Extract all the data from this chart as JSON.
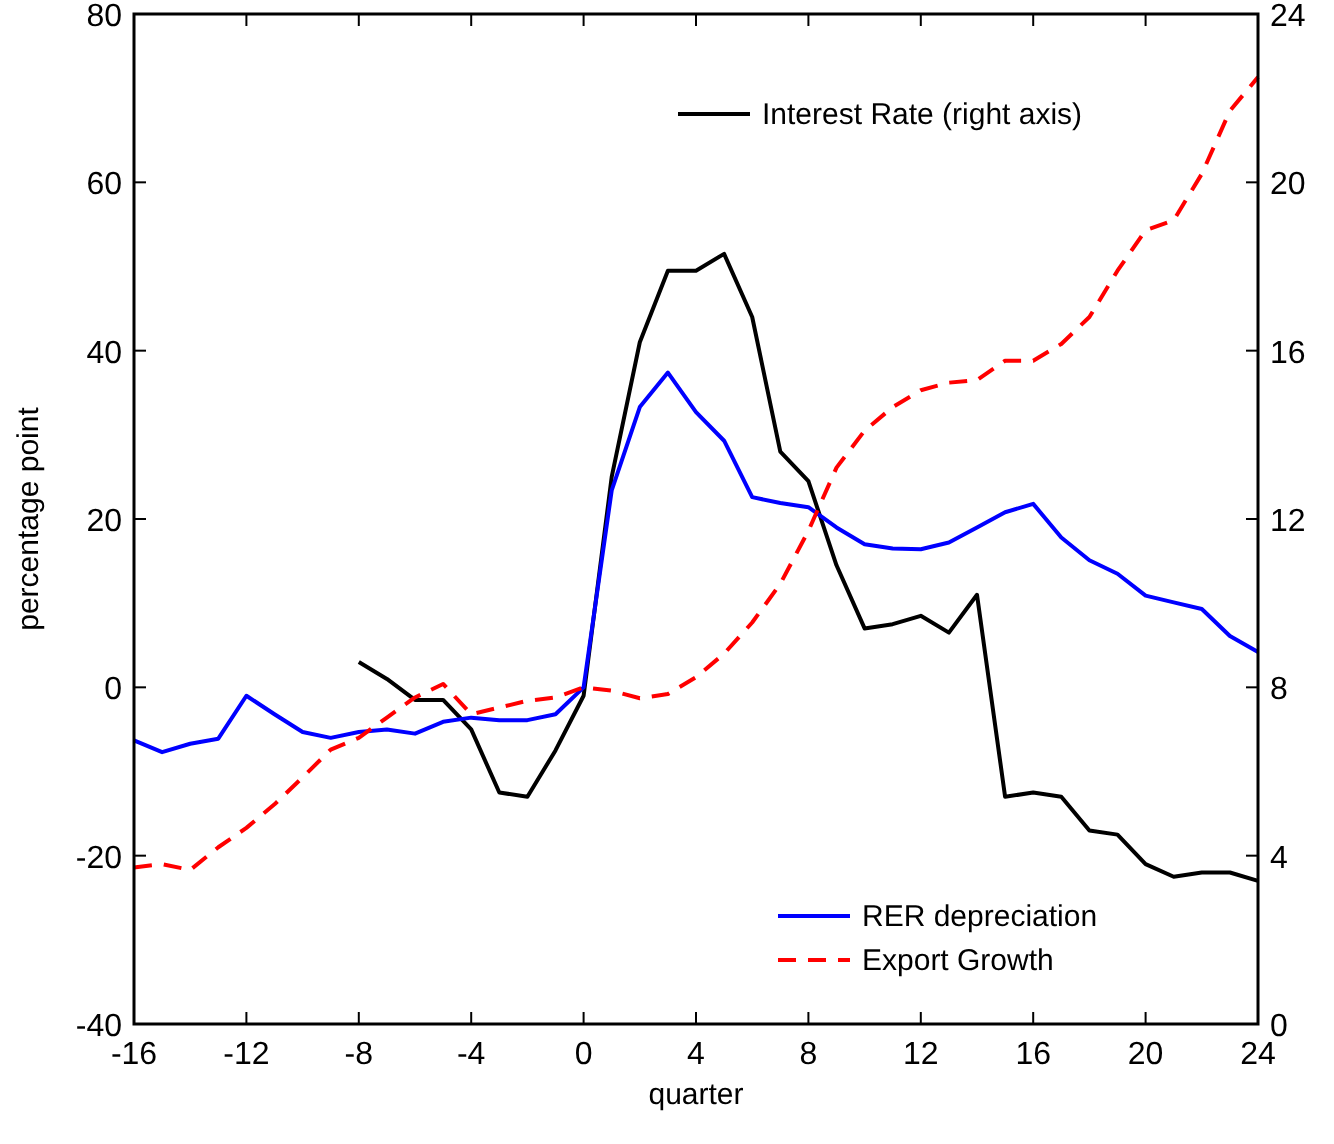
{
  "chart_data": {
    "type": "line",
    "xlabel": "quarter",
    "ylabel": "percentage point",
    "x": [
      -16,
      -15,
      -14,
      -13,
      -12,
      -11,
      -10,
      -9,
      -8,
      -7,
      -6,
      -5,
      -4,
      -3,
      -2,
      -1,
      0,
      1,
      2,
      3,
      4,
      5,
      6,
      7,
      8,
      9,
      10,
      11,
      12,
      13,
      14,
      15,
      16,
      17,
      18,
      19,
      20,
      21,
      22,
      23,
      24
    ],
    "xlim": [
      -16,
      24
    ],
    "xticks": [
      -16,
      -12,
      -8,
      -4,
      0,
      4,
      8,
      12,
      16,
      20,
      24
    ],
    "ylim": [
      -40,
      80
    ],
    "yticks": [
      -40,
      -20,
      0,
      20,
      40,
      60,
      80
    ],
    "y2lim": [
      0,
      24
    ],
    "y2ticks": [
      0,
      4,
      8,
      12,
      16,
      20,
      24
    ],
    "series": [
      {
        "name": "Interest Rate (right axis)",
        "color": "#000000",
        "axis": "y2",
        "line_style": "solid",
        "values": [
          null,
          null,
          null,
          null,
          null,
          null,
          null,
          null,
          8.6,
          8.2,
          7.7,
          7.7,
          7.0,
          5.5,
          5.4,
          6.5,
          7.8,
          13.0,
          16.2,
          17.9,
          17.9,
          18.3,
          16.8,
          13.6,
          12.9,
          10.9,
          9.4,
          9.5,
          9.7,
          9.3,
          10.2,
          5.4,
          5.5,
          5.4,
          4.6,
          4.5,
          3.8,
          3.5,
          3.6,
          3.6,
          3.4
        ]
      },
      {
        "name": "RER depreciation",
        "color": "#0000ff",
        "line_style": "solid",
        "values": [
          -6.3,
          -7.7,
          -6.7,
          -6.1,
          -1.0,
          -3.2,
          -5.3,
          -6.0,
          -5.3,
          -5.0,
          -5.5,
          -4.1,
          -3.6,
          -3.9,
          -3.9,
          -3.2,
          0,
          23.4,
          33.3,
          37.4,
          32.7,
          29.3,
          22.6,
          21.9,
          21.4,
          19,
          17,
          16.5,
          16.4,
          17.2,
          19,
          20.8,
          21.8,
          17.8,
          15.1,
          13.5,
          10.9,
          10.1,
          9.3,
          6.1,
          4.2
        ]
      },
      {
        "name": "Export Growth",
        "color": "#ff0000",
        "line_style": "dashed",
        "values": [
          -21.4,
          -21,
          -21.7,
          -19,
          -16.7,
          -13.9,
          -10.7,
          -7.4,
          -6,
          -3.6,
          -1.2,
          0.4,
          -3.2,
          -2.4,
          -1.6,
          -1.2,
          0,
          -0.4,
          -1.3,
          -0.8,
          1.2,
          4,
          7.7,
          12.3,
          18.6,
          26.1,
          30.5,
          33.3,
          35.3,
          36.2,
          36.5,
          38.8,
          38.8,
          40.8,
          44,
          49.5,
          54.3,
          55.5,
          61,
          68.5,
          72.5
        ]
      }
    ],
    "legend": "right",
    "grid": false,
    "marker": "none"
  }
}
